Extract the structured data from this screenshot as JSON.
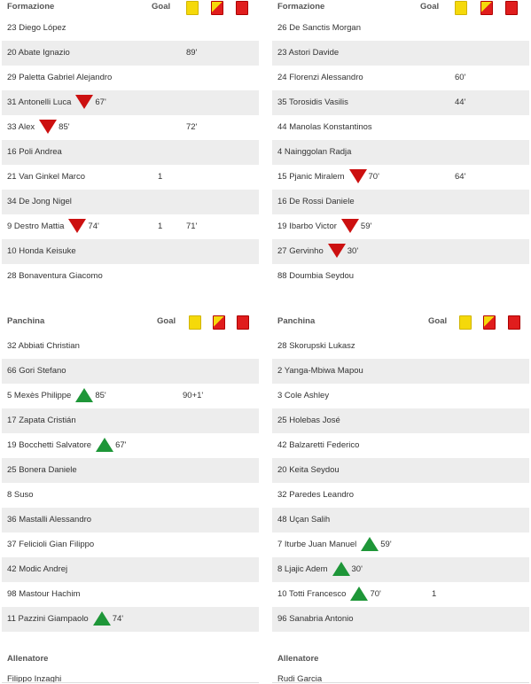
{
  "left": {
    "formazione": {
      "title": "Formazione",
      "goal": "Goal",
      "rows": [
        {
          "name": "23 Diego López"
        },
        {
          "name": "20 Abate Ignazio",
          "yellow": "89'"
        },
        {
          "name": "29 Paletta Gabriel Alejandro"
        },
        {
          "name": "31 Antonelli Luca",
          "sub": "down",
          "min": "67'"
        },
        {
          "name": "33 Alex",
          "sub": "down",
          "min": "85'",
          "yellow": "72'"
        },
        {
          "name": "16 Poli Andrea"
        },
        {
          "name": "21 Van Ginkel Marco",
          "goal": "1"
        },
        {
          "name": "34 De Jong Nigel"
        },
        {
          "name": "9 Destro Mattia",
          "sub": "down",
          "min": "74'",
          "goal": "1",
          "yellow": "71'"
        },
        {
          "name": "10 Honda Keisuke"
        },
        {
          "name": "28 Bonaventura Giacomo"
        }
      ]
    },
    "panchina": {
      "title": "Panchina",
      "goal": "Goal",
      "rows": [
        {
          "name": "32 Abbiati Christian"
        },
        {
          "name": "66 Gori Stefano"
        },
        {
          "name": "5 Mexès Philippe",
          "sub": "up",
          "min": "85'",
          "yellow": "90+1'"
        },
        {
          "name": "17 Zapata Cristián"
        },
        {
          "name": "19 Bocchetti Salvatore",
          "sub": "up",
          "min": "67'"
        },
        {
          "name": "25 Bonera Daniele"
        },
        {
          "name": "8 Suso"
        },
        {
          "name": "36 Mastalli Alessandro"
        },
        {
          "name": "37 Felicioli Gian Filippo"
        },
        {
          "name": "42 Modic Andrej"
        },
        {
          "name": "98 Mastour Hachim"
        },
        {
          "name": "11 Pazzini Giampaolo",
          "sub": "up",
          "min": "74'"
        }
      ]
    },
    "allenatore": {
      "title": "Allenatore",
      "name": "Filippo Inzaghi"
    }
  },
  "right": {
    "formazione": {
      "title": "Formazione",
      "goal": "Goal",
      "rows": [
        {
          "name": "26 De Sanctis Morgan"
        },
        {
          "name": "23 Astori Davide"
        },
        {
          "name": "24 Florenzi Alessandro",
          "yellow": "60'"
        },
        {
          "name": "35 Torosidis Vasilis",
          "yellow": "44'"
        },
        {
          "name": "44 Manolas Konstantinos"
        },
        {
          "name": "4 Nainggolan Radja"
        },
        {
          "name": "15 Pjanic Miralem",
          "sub": "down",
          "min": "70'",
          "yellow": "64'"
        },
        {
          "name": "16 De Rossi Daniele"
        },
        {
          "name": "19 Ibarbo Victor",
          "sub": "down",
          "min": "59'"
        },
        {
          "name": "27 Gervinho",
          "sub": "down",
          "min": "30'"
        },
        {
          "name": "88 Doumbia Seydou"
        }
      ]
    },
    "panchina": {
      "title": "Panchina",
      "goal": "Goal",
      "rows": [
        {
          "name": "28 Skorupski Lukasz"
        },
        {
          "name": "2 Yanga-Mbiwa Mapou"
        },
        {
          "name": "3 Cole Ashley"
        },
        {
          "name": "25 Holebas José"
        },
        {
          "name": "42 Balzaretti Federico"
        },
        {
          "name": "20 Keita Seydou"
        },
        {
          "name": "32 Paredes Leandro"
        },
        {
          "name": "48 Uçan Salih"
        },
        {
          "name": "7 Iturbe Juan Manuel",
          "sub": "up",
          "min": "59'"
        },
        {
          "name": "8 Ljajic Adem",
          "sub": "up",
          "min": "30'"
        },
        {
          "name": "10 Totti Francesco",
          "sub": "up",
          "min": "70'",
          "goal": "1"
        },
        {
          "name": "96 Sanabria Antonio"
        }
      ]
    },
    "allenatore": {
      "title": "Allenatore",
      "name": "Rudi Garcia"
    }
  },
  "colors": {
    "yellow_card": "#f5d90a",
    "red_card": "#e01d1d",
    "sub_out": "#cc1010",
    "sub_in": "#1e9638",
    "row_alt": "#ededed"
  },
  "icons": {
    "yellow": "yellow-card-icon",
    "yellow_red": "second-yellow-card-icon",
    "red": "red-card-icon",
    "sub_out": "substitution-out-icon",
    "sub_in": "substitution-in-icon"
  }
}
